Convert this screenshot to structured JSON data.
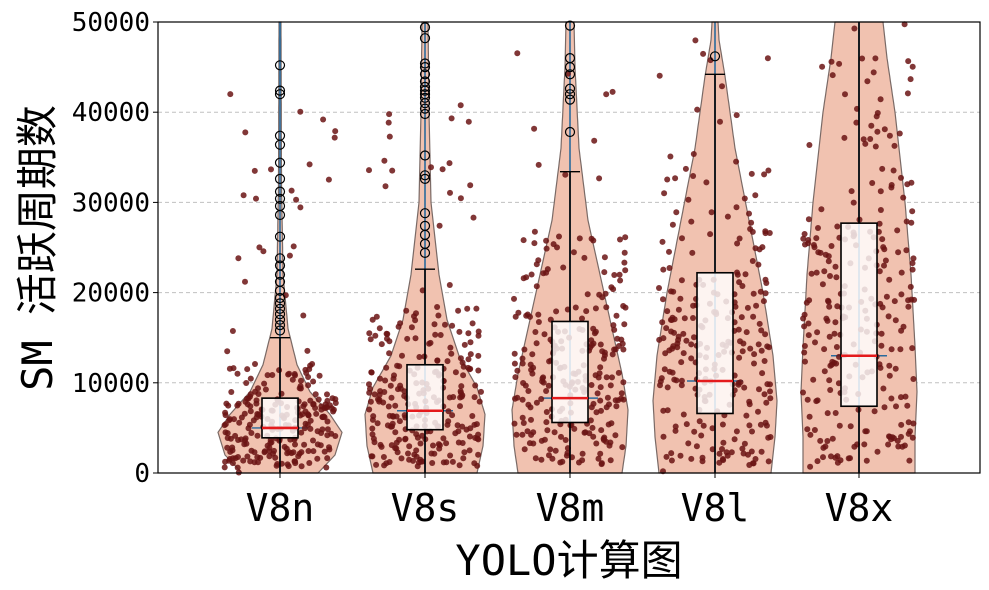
{
  "chart_data": {
    "type": "violin",
    "xlabel": "YOLO计算图",
    "ylabel": "SM 活跃周期数",
    "ylim": [
      0,
      50000
    ],
    "yticks": [
      "0",
      "10000",
      "20000",
      "30000",
      "40000",
      "50000"
    ],
    "grid": "horizontal-dashed",
    "categories": [
      "V8n",
      "V8s",
      "V8m",
      "V8l",
      "V8x"
    ],
    "boxes": [
      {
        "name": "V8n",
        "q1": 3900,
        "median": 5000,
        "q3": 8300,
        "whisker_low": 0,
        "whisker_high": 15000,
        "outliers": [
          15800,
          16400,
          17000,
          17600,
          18200,
          18800,
          19400,
          20200,
          21200,
          22000,
          23000,
          23800,
          26200,
          28600,
          29600,
          30400,
          31200,
          32600,
          34400,
          36400,
          37400,
          42000,
          42400,
          45200
        ],
        "violin_max": 50000,
        "jitter_ymax": 44000
      },
      {
        "name": "V8s",
        "q1": 4800,
        "median": 6900,
        "q3": 12000,
        "whisker_low": 0,
        "whisker_high": 22600,
        "outliers": [
          24400,
          25400,
          26400,
          27400,
          28800,
          32600,
          33000,
          35200,
          39800,
          40400,
          41000,
          41600,
          42000,
          42400,
          42800,
          43400,
          44200,
          45000,
          45400,
          48200,
          49400
        ],
        "violin_max": 50000,
        "jitter_ymax": 46000
      },
      {
        "name": "V8m",
        "q1": 5600,
        "median": 8300,
        "q3": 16800,
        "whisker_low": 0,
        "whisker_high": 33400,
        "outliers": [
          37800,
          41400,
          42000,
          42600,
          44200,
          45000,
          46000,
          49600
        ],
        "violin_max": 50000,
        "jitter_ymax": 48000
      },
      {
        "name": "V8l",
        "q1": 6600,
        "median": 10200,
        "q3": 22200,
        "whisker_low": 0,
        "whisker_high": 44200,
        "outliers": [
          46200
        ],
        "violin_max": 50000,
        "jitter_ymax": 48000
      },
      {
        "name": "V8x",
        "q1": 7400,
        "median": 13000,
        "q3": 27700,
        "whisker_low": 0,
        "whisker_high": 50000,
        "outliers": [],
        "violin_max": 50000,
        "jitter_ymax": 50000
      }
    ],
    "colors": {
      "violin_fill": "#f1c2b0",
      "violin_edge": "#7a6a66",
      "points": "#6b1414",
      "median": "#e41a1c",
      "inner_line": "#2a6a9c",
      "grid": "#c0c0c0"
    }
  }
}
